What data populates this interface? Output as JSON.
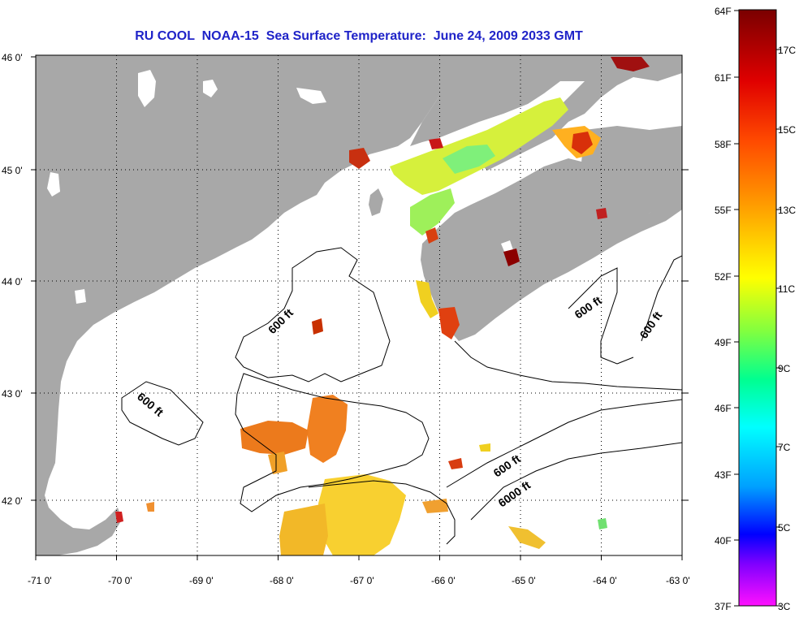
{
  "title": "RU COOL  NOAA-15  Sea Surface Temperature:  June 24, 2009 2033 GMT",
  "map": {
    "lon_range": [
      -71,
      -63
    ],
    "lat_range": [
      41.5,
      46.0
    ],
    "lon_ticks": [
      "-71 0'",
      "-70 0'",
      "-69 0'",
      "-68 0'",
      "-67 0'",
      "-66 0'",
      "-65 0'",
      "-64 0'",
      "-63 0'"
    ],
    "lat_ticks": [
      "46 0'",
      "45 0'",
      "44 0'",
      "43 0'",
      "42 0'"
    ],
    "grid": "dotted",
    "land_color": "#a8a8a8",
    "no_data_color": "#ffffff"
  },
  "isobaths": [
    {
      "label": "600 ft"
    },
    {
      "label": "600 ft"
    },
    {
      "label": "600 ft"
    },
    {
      "label": "600 ft"
    },
    {
      "label": "600 ft"
    },
    {
      "label": "6000 ft"
    }
  ],
  "colorbar": {
    "fahrenheit_labels": [
      "64F",
      "61F",
      "58F",
      "55F",
      "52F",
      "49F",
      "46F",
      "43F",
      "40F",
      "37F"
    ],
    "celsius_labels": [
      "17C",
      "15C",
      "13C",
      "11C",
      "9C",
      "7C",
      "5C",
      "3C"
    ],
    "colors": [
      "#8b0000",
      "#ff0000",
      "#ff8c00",
      "#ffff00",
      "#00ff80",
      "#00ffff",
      "#0000ff",
      "#ff00ff"
    ]
  }
}
